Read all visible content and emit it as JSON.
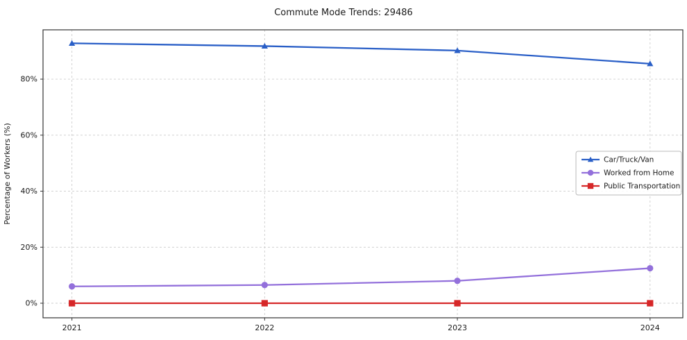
{
  "page": {
    "background": "#ffffff"
  },
  "chart_data": {
    "type": "line",
    "title": "Commute Mode Trends: 29486",
    "xlabel": "",
    "ylabel": "Percentage of Workers (%)",
    "x": [
      2021,
      2022,
      2023,
      2024
    ],
    "xtick_labels": [
      "2021",
      "2022",
      "2023",
      "2024"
    ],
    "yticks": [
      0,
      20,
      40,
      60,
      80
    ],
    "ytick_labels": [
      "0%",
      "20%",
      "40%",
      "60%",
      "80%"
    ],
    "xlim": [
      2020.85,
      2024.17
    ],
    "ylim": [
      -5.2,
      97.6
    ],
    "grid": true,
    "grid_style": "dashed",
    "legend_position": "center-right",
    "plot_border_color": "#333333",
    "grid_color": "#cccccc",
    "series": [
      {
        "name": "Car/Truck/Van",
        "color": "#2a5fc7",
        "marker": "triangle",
        "values": [
          92.8,
          91.8,
          90.2,
          85.5
        ]
      },
      {
        "name": "Worked from Home",
        "color": "#9370db",
        "marker": "circle",
        "values": [
          6.0,
          6.5,
          8.0,
          12.5
        ]
      },
      {
        "name": "Public Transportation",
        "color": "#d62728",
        "marker": "square",
        "values": [
          0.0,
          0.0,
          0.0,
          0.0
        ]
      }
    ]
  }
}
